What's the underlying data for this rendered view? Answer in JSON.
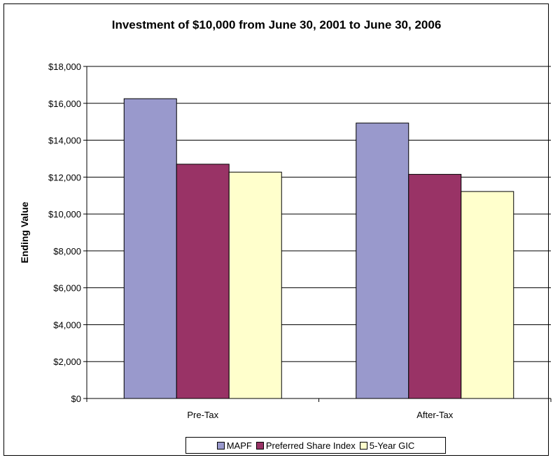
{
  "chart_data": {
    "type": "bar",
    "title": "Investment of $10,000 from June 30, 2001 to June 30, 2006",
    "xlabel": "",
    "ylabel": "Ending Value",
    "categories": [
      "Pre-Tax",
      "After-Tax"
    ],
    "series": [
      {
        "name": "MAPF",
        "values": [
          16250,
          14930
        ],
        "color": "#9999cc"
      },
      {
        "name": "Preferred Share Index",
        "values": [
          12700,
          12150
        ],
        "color": "#993366"
      },
      {
        "name": "5-Year GIC",
        "values": [
          12270,
          11220
        ],
        "color": "#ffffcc"
      }
    ],
    "ylim": [
      0,
      18000
    ],
    "yticks": [
      0,
      2000,
      4000,
      6000,
      8000,
      10000,
      12000,
      14000,
      16000,
      18000
    ],
    "ytick_labels": [
      "$0",
      "$2,000",
      "$4,000",
      "$6,000",
      "$8,000",
      "$10,000",
      "$12,000",
      "$14,000",
      "$16,000",
      "$18,000"
    ],
    "grid": true,
    "legend_position": "bottom"
  }
}
